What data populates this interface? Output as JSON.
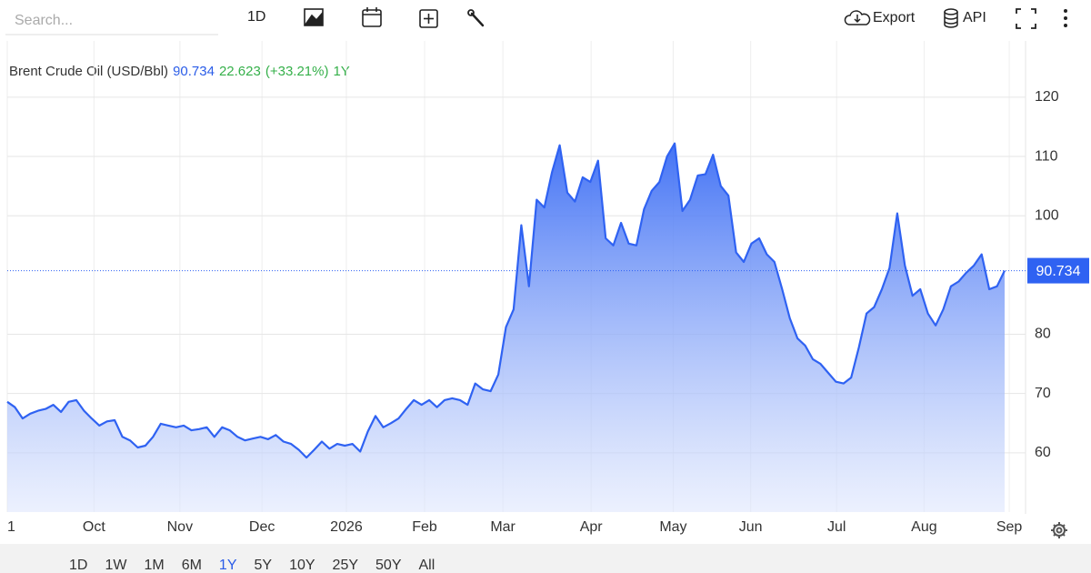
{
  "toolbar": {
    "search_placeholder": "Search...",
    "interval": "1D",
    "export": "Export",
    "api": "API"
  },
  "chart_data": {
    "type": "area",
    "title": "Brent Crude Oil (USD/Bbl)",
    "last_price": 90.734,
    "change": 22.623,
    "change_label": "(+33.21%)",
    "period": "1Y",
    "color": "#2f62f2",
    "values": [
      68.6,
      67.7,
      65.8,
      66.6,
      67.1,
      67.4,
      68.1,
      66.9,
      68.6,
      68.9,
      67.1,
      65.8,
      64.6,
      65.3,
      65.5,
      62.7,
      62.1,
      60.9,
      61.2,
      62.7,
      64.9,
      64.6,
      64.3,
      64.6,
      63.8,
      64.0,
      64.3,
      62.7,
      64.3,
      63.8,
      62.7,
      62.1,
      62.4,
      62.7,
      62.3,
      63.0,
      61.9,
      61.5,
      60.5,
      59.2,
      60.5,
      61.9,
      60.7,
      61.5,
      61.2,
      61.5,
      60.2,
      63.6,
      66.2,
      64.3,
      65.0,
      65.8,
      67.4,
      68.9,
      68.1,
      68.9,
      67.7,
      68.9,
      69.2,
      68.9,
      68.1,
      71.7,
      70.7,
      70.4,
      73.2,
      81.2,
      84.2,
      98.4,
      88.1,
      102.7,
      101.4,
      107.3,
      111.9,
      103.9,
      102.4,
      106.5,
      105.7,
      109.3,
      96.2,
      95.0,
      98.8,
      95.3,
      95.0,
      101.1,
      104.2,
      105.7,
      110.0,
      112.2,
      100.8,
      102.7,
      106.8,
      107.0,
      110.3,
      105.0,
      103.4,
      93.8,
      92.2,
      95.3,
      96.2,
      93.5,
      92.2,
      87.6,
      82.7,
      79.3,
      78.1,
      75.8,
      75.0,
      73.5,
      72.0,
      71.7,
      72.7,
      77.8,
      83.5,
      84.6,
      87.6,
      91.2,
      100.4,
      91.6,
      86.5,
      87.6,
      83.5,
      81.5,
      84.2,
      88.1,
      88.9,
      90.4,
      91.6,
      93.5,
      87.6,
      88.1,
      90.734
    ],
    "ylim": [
      50,
      129.5
    ],
    "yticks": [
      60,
      70,
      80,
      100,
      110,
      120
    ],
    "xlim": [
      0,
      130
    ],
    "xticks": [
      {
        "value": 0,
        "label": "1"
      },
      {
        "value": 11.3,
        "label": "Oct"
      },
      {
        "value": 22.5,
        "label": "Nov"
      },
      {
        "value": 33.2,
        "label": "Dec"
      },
      {
        "value": 44.2,
        "label": "2026"
      },
      {
        "value": 54.4,
        "label": "Feb"
      },
      {
        "value": 64.6,
        "label": "Mar"
      },
      {
        "value": 76.1,
        "label": "Apr"
      },
      {
        "value": 86.8,
        "label": "May"
      },
      {
        "value": 96.9,
        "label": "Jun"
      },
      {
        "value": 108.1,
        "label": "Jul"
      },
      {
        "value": 119.5,
        "label": "Aug"
      },
      {
        "value": 130.6,
        "label": "Sep"
      }
    ],
    "grid": true
  },
  "ranges": [
    "1D",
    "1W",
    "1M",
    "6M",
    "1Y",
    "5Y",
    "10Y",
    "25Y",
    "50Y",
    "All"
  ],
  "active_range": 4
}
